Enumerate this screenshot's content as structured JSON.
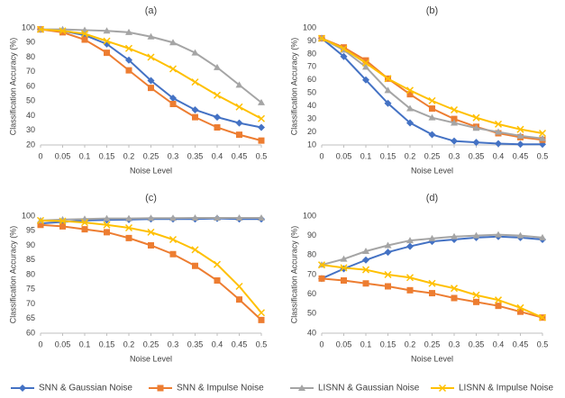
{
  "chart_data": [
    {
      "type": "line",
      "title": "(a)",
      "x_label": "Noise Level",
      "y_label": "Classification Accuracy (%)",
      "x": [
        0,
        0.05,
        0.1,
        0.15,
        0.2,
        0.25,
        0.3,
        0.35,
        0.4,
        0.45,
        0.5
      ],
      "xlim": [
        0,
        0.5
      ],
      "xticks": [
        0,
        0.05,
        0.1,
        0.15,
        0.2,
        0.25,
        0.3,
        0.35,
        0.4,
        0.45,
        0.5
      ],
      "ylim": [
        20,
        100
      ],
      "yticks": [
        20,
        30,
        40,
        50,
        60,
        70,
        80,
        90,
        100
      ],
      "grid": false,
      "series": [
        {
          "name": "SNN & Gaussian Noise",
          "color": "#4472c4",
          "marker": "diamond",
          "values": [
            99,
            98,
            95,
            89,
            78,
            64,
            52,
            44,
            39,
            35,
            32
          ]
        },
        {
          "name": "SNN & Impulse Noise",
          "color": "#ed7d31",
          "marker": "square",
          "values": [
            99,
            97,
            92,
            83,
            71,
            59,
            48,
            39,
            32,
            27,
            23
          ]
        },
        {
          "name": "LISNN & Gaussian Noise",
          "color": "#a5a5a5",
          "marker": "triangle",
          "values": [
            99,
            99,
            98.5,
            98,
            97,
            94,
            90,
            83,
            73,
            61,
            49
          ]
        },
        {
          "name": "LISNN & Impulse Noise",
          "color": "#ffc000",
          "marker": "x",
          "values": [
            99,
            98,
            96,
            91,
            86,
            80,
            72,
            63,
            54,
            46,
            38
          ]
        }
      ]
    },
    {
      "type": "line",
      "title": "(b)",
      "x_label": "Noise Level",
      "y_label": "Classification Accuracy (%)",
      "x": [
        0,
        0.05,
        0.1,
        0.15,
        0.2,
        0.25,
        0.3,
        0.35,
        0.4,
        0.45,
        0.5
      ],
      "xlim": [
        0,
        0.5
      ],
      "xticks": [
        0,
        0.05,
        0.1,
        0.15,
        0.2,
        0.25,
        0.3,
        0.35,
        0.4,
        0.45,
        0.5
      ],
      "ylim": [
        10,
        100
      ],
      "yticks": [
        10,
        20,
        30,
        40,
        50,
        60,
        70,
        80,
        90,
        100
      ],
      "grid": false,
      "series": [
        {
          "name": "SNN & Gaussian Noise",
          "color": "#4472c4",
          "marker": "diamond",
          "values": [
            92,
            78,
            60,
            42,
            27,
            18,
            13,
            12,
            11,
            10.5,
            10.5
          ]
        },
        {
          "name": "SNN & Impulse Noise",
          "color": "#ed7d31",
          "marker": "square",
          "values": [
            92,
            85,
            75,
            61,
            49,
            38,
            30,
            24,
            19,
            16,
            14
          ]
        },
        {
          "name": "LISNN & Gaussian Noise",
          "color": "#a5a5a5",
          "marker": "triangle",
          "values": [
            92,
            83,
            70,
            52,
            38,
            31,
            27,
            23,
            20,
            17,
            15
          ]
        },
        {
          "name": "LISNN & Impulse Noise",
          "color": "#ffc000",
          "marker": "x",
          "values": [
            92,
            84,
            73,
            61,
            52,
            44,
            37,
            31,
            26,
            22,
            19
          ]
        }
      ]
    },
    {
      "type": "line",
      "title": "(c)",
      "x_label": "Noise Level",
      "y_label": "Classification Accuracy (%)",
      "x": [
        0,
        0.05,
        0.1,
        0.15,
        0.2,
        0.25,
        0.3,
        0.35,
        0.4,
        0.45,
        0.5
      ],
      "xlim": [
        0,
        0.5
      ],
      "xticks": [
        0,
        0.05,
        0.1,
        0.15,
        0.2,
        0.25,
        0.3,
        0.35,
        0.4,
        0.45,
        0.5
      ],
      "ylim": [
        60,
        100
      ],
      "yticks": [
        60,
        65,
        70,
        75,
        80,
        85,
        90,
        95,
        100
      ],
      "grid": false,
      "series": [
        {
          "name": "SNN & Gaussian Noise",
          "color": "#4472c4",
          "marker": "diamond",
          "values": [
            97.5,
            98,
            98.5,
            98.7,
            98.8,
            99,
            99,
            99,
            99.2,
            99,
            99
          ]
        },
        {
          "name": "SNN & Impulse Noise",
          "color": "#ed7d31",
          "marker": "square",
          "values": [
            97,
            96.5,
            95.5,
            94.5,
            92.5,
            90,
            87,
            83,
            78,
            71.5,
            64.5
          ]
        },
        {
          "name": "LISNN & Gaussian Noise",
          "color": "#a5a5a5",
          "marker": "triangle",
          "values": [
            98.5,
            98.8,
            99,
            99.2,
            99.2,
            99.3,
            99.3,
            99.4,
            99.4,
            99.4,
            99.4
          ]
        },
        {
          "name": "LISNN & Impulse Noise",
          "color": "#ffc000",
          "marker": "x",
          "values": [
            98.5,
            98.3,
            97.8,
            97,
            96,
            94.5,
            92,
            88.5,
            83.5,
            76,
            67
          ]
        }
      ]
    },
    {
      "type": "line",
      "title": "(d)",
      "x_label": "Noise Level",
      "y_label": "Classification Accuracy (%)",
      "x": [
        0,
        0.05,
        0.1,
        0.15,
        0.2,
        0.25,
        0.3,
        0.35,
        0.4,
        0.45,
        0.5
      ],
      "xlim": [
        0,
        0.5
      ],
      "xticks": [
        0,
        0.05,
        0.1,
        0.15,
        0.2,
        0.25,
        0.3,
        0.35,
        0.4,
        0.45,
        0.5
      ],
      "ylim": [
        40,
        100
      ],
      "yticks": [
        40,
        50,
        60,
        70,
        80,
        90,
        100
      ],
      "grid": false,
      "series": [
        {
          "name": "SNN & Gaussian Noise",
          "color": "#4472c4",
          "marker": "diamond",
          "values": [
            68,
            73,
            77.5,
            81.5,
            84.5,
            87,
            88,
            89,
            89.5,
            89,
            88
          ]
        },
        {
          "name": "SNN & Impulse Noise",
          "color": "#ed7d31",
          "marker": "square",
          "values": [
            68,
            67,
            65.5,
            64,
            62,
            60.5,
            58,
            56,
            54,
            51,
            48
          ]
        },
        {
          "name": "LISNN & Gaussian Noise",
          "color": "#a5a5a5",
          "marker": "triangle",
          "values": [
            75,
            78,
            82,
            85,
            87.5,
            88.5,
            89.5,
            90,
            90.5,
            90,
            89
          ]
        },
        {
          "name": "LISNN & Impulse Noise",
          "color": "#ffc000",
          "marker": "x",
          "values": [
            75,
            73.5,
            72.5,
            70,
            68.5,
            65.5,
            63,
            59.5,
            57,
            53,
            48
          ]
        }
      ]
    }
  ]
}
